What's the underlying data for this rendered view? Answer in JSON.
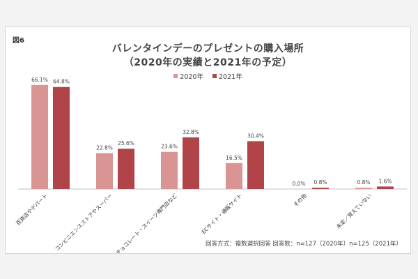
{
  "figure_label": "図6",
  "footnote": "回答方式：複数選択回答  回答数：n=127（2020年）n=125（2021年）",
  "colors": {
    "2020年": "#d99594",
    "2021年": "#b04449"
  },
  "chart_data": {
    "type": "bar",
    "title": "バレンタインデーのプレゼントの購入場所",
    "subtitle": "（2020年の実績と2021年の予定）",
    "xlabel": "",
    "ylabel": "",
    "ylim": [
      0,
      70
    ],
    "grid": false,
    "legend": "top-center",
    "categories": [
      "百貨店やデパート",
      "コンビニエンスストアやスーパー",
      "チョコレート・スイーツ専門店など",
      "ECサイト・通販サイト",
      "その他",
      "未定／覚えていない"
    ],
    "series": [
      {
        "name": "2020年",
        "values": [
          66.1,
          22.8,
          23.6,
          16.5,
          0.0,
          0.8
        ],
        "labels": [
          "66.1%",
          "22.8%",
          "23.6%",
          "16.5%",
          "0.0%",
          "0.8%"
        ]
      },
      {
        "name": "2021年",
        "values": [
          64.8,
          25.6,
          32.8,
          30.4,
          0.8,
          1.6
        ],
        "labels": [
          "64.8%",
          "25.6%",
          "32.8%",
          "30.4%",
          "0.8%",
          "1.6%"
        ]
      }
    ]
  }
}
